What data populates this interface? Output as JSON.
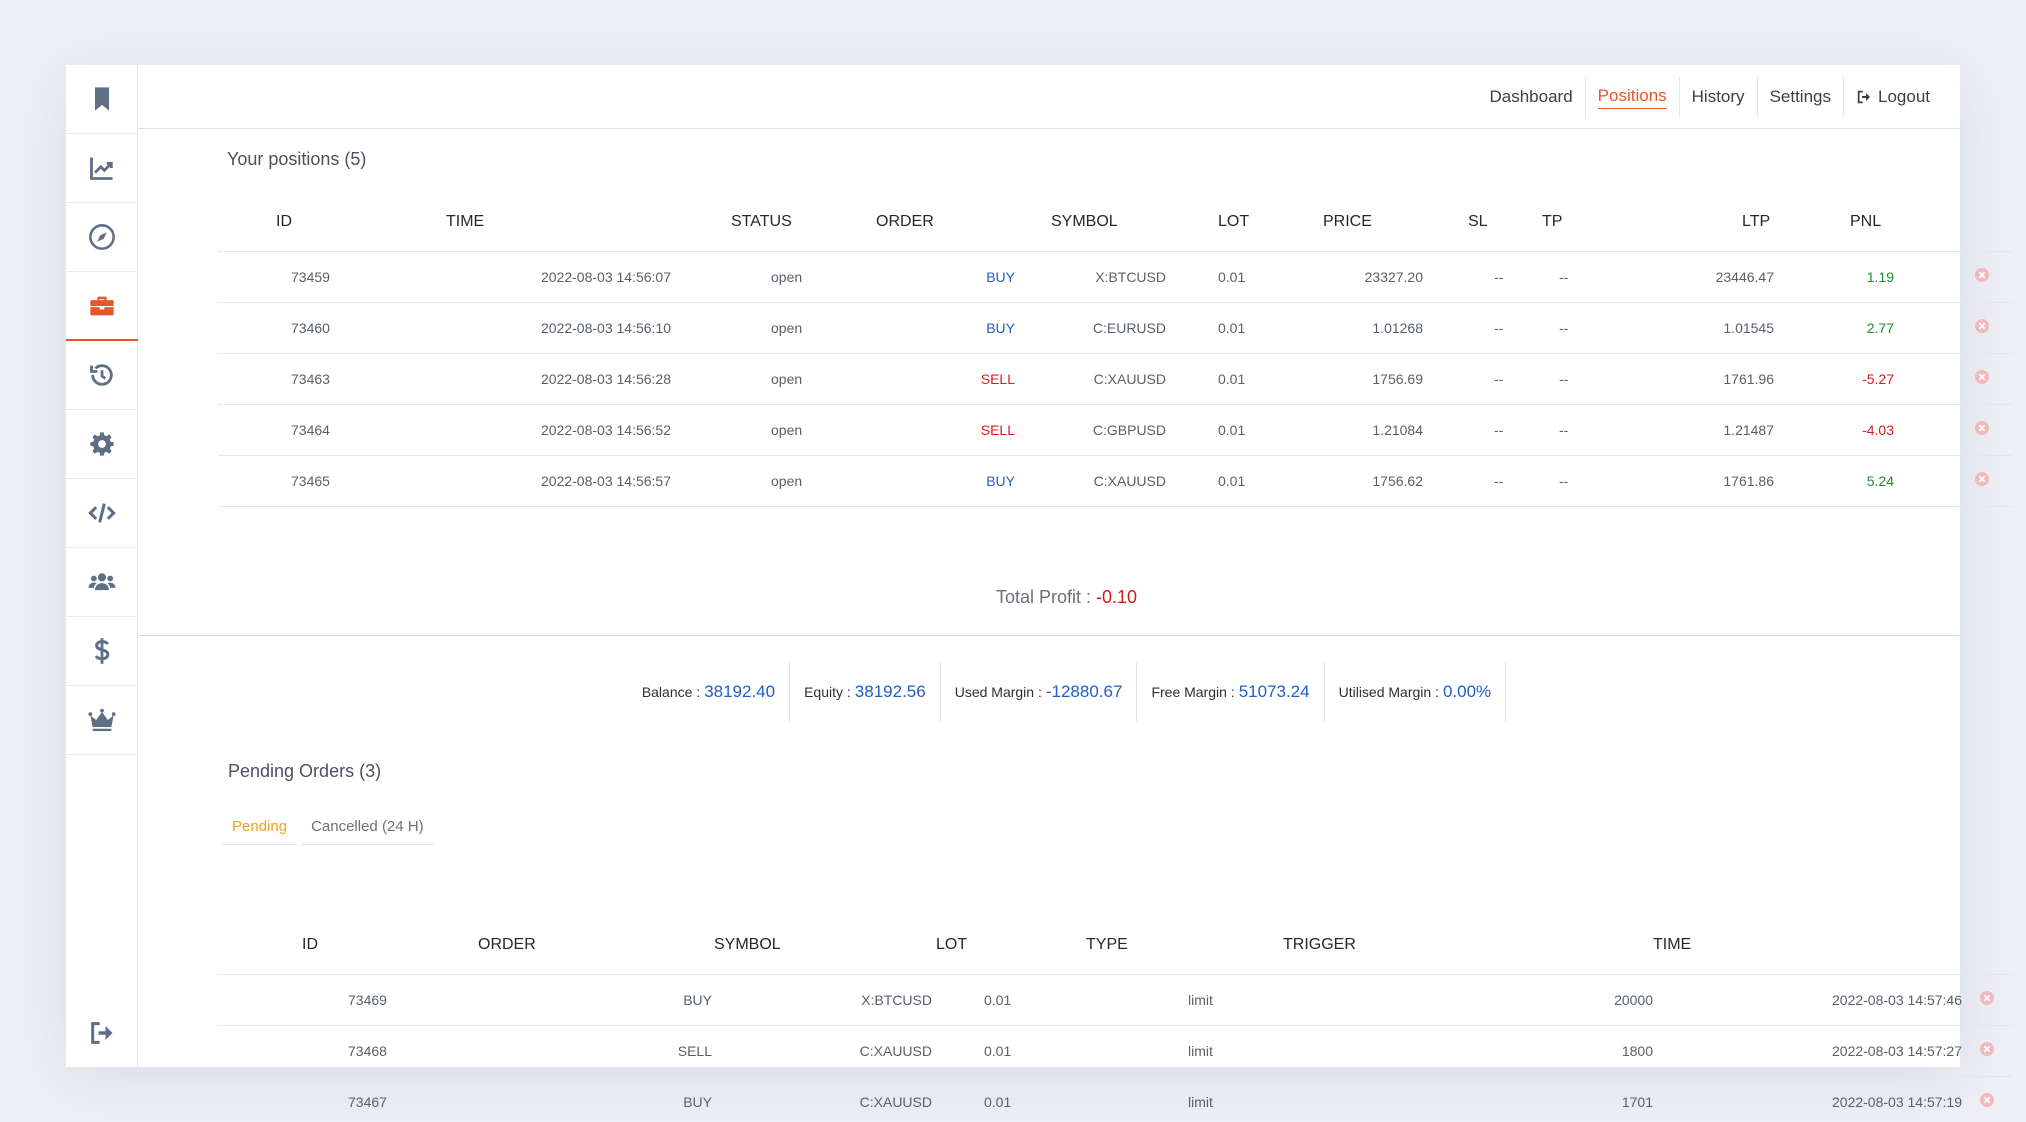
{
  "nav": {
    "items": [
      {
        "label": "Dashboard"
      },
      {
        "label": "Positions"
      },
      {
        "label": "History"
      },
      {
        "label": "Settings"
      }
    ],
    "logout": "Logout"
  },
  "colors": {
    "accent": "#e8572a",
    "buy": "#1f5fc4",
    "sell": "#e01b1b",
    "profit": "#1f8a2a",
    "loss": "#d91a1a",
    "pending_tab": "#f0a020"
  },
  "positions": {
    "title": "Your positions (5)",
    "headers": [
      "ID",
      "TIME",
      "STATUS",
      "ORDER",
      "SYMBOL",
      "LOT",
      "PRICE",
      "SL",
      "TP",
      "LTP",
      "PNL"
    ],
    "rows": [
      {
        "id": "73459",
        "time": "2022-08-03 14:56:07",
        "status": "open",
        "order": "BUY",
        "symbol": "X:BTCUSD",
        "lot": "0.01",
        "price": "23327.20",
        "sl": "--",
        "tp": "--",
        "ltp": "23446.47",
        "pnl": "1.19"
      },
      {
        "id": "73460",
        "time": "2022-08-03 14:56:10",
        "status": "open",
        "order": "BUY",
        "symbol": "C:EURUSD",
        "lot": "0.01",
        "price": "1.01268",
        "sl": "--",
        "tp": "--",
        "ltp": "1.01545",
        "pnl": "2.77"
      },
      {
        "id": "73463",
        "time": "2022-08-03 14:56:28",
        "status": "open",
        "order": "SELL",
        "symbol": "C:XAUUSD",
        "lot": "0.01",
        "price": "1756.69",
        "sl": "--",
        "tp": "--",
        "ltp": "1761.96",
        "pnl": "-5.27"
      },
      {
        "id": "73464",
        "time": "2022-08-03 14:56:52",
        "status": "open",
        "order": "SELL",
        "symbol": "C:GBPUSD",
        "lot": "0.01",
        "price": "1.21084",
        "sl": "--",
        "tp": "--",
        "ltp": "1.21487",
        "pnl": "-4.03"
      },
      {
        "id": "73465",
        "time": "2022-08-03 14:56:57",
        "status": "open",
        "order": "BUY",
        "symbol": "C:XAUUSD",
        "lot": "0.01",
        "price": "1756.62",
        "sl": "--",
        "tp": "--",
        "ltp": "1761.86",
        "pnl": "5.24"
      }
    ],
    "total_label": "Total Profit : ",
    "total_value": "-0.10"
  },
  "stats": [
    {
      "label": "Balance : ",
      "value": "38192.40"
    },
    {
      "label": "Equity : ",
      "value": "38192.56"
    },
    {
      "label": "Used Margin : ",
      "value": "-12880.67"
    },
    {
      "label": "Free Margin : ",
      "value": "51073.24"
    },
    {
      "label": "Utilised Margin : ",
      "value": "0.00%"
    }
  ],
  "pending": {
    "title": "Pending Orders (3)",
    "tabs": [
      "Pending",
      "Cancelled (24 H)"
    ],
    "headers": [
      "ID",
      "ORDER",
      "SYMBOL",
      "LOT",
      "TYPE",
      "TRIGGER",
      "TIME"
    ],
    "rows": [
      {
        "id": "73469",
        "order": "BUY",
        "symbol": "X:BTCUSD",
        "lot": "0.01",
        "type": "limit",
        "trigger": "20000",
        "time": "2022-08-03 14:57:46"
      },
      {
        "id": "73468",
        "order": "SELL",
        "symbol": "C:XAUUSD",
        "lot": "0.01",
        "type": "limit",
        "trigger": "1800",
        "time": "2022-08-03 14:57:27"
      },
      {
        "id": "73467",
        "order": "BUY",
        "symbol": "C:XAUUSD",
        "lot": "0.01",
        "type": "limit",
        "trigger": "1701",
        "time": "2022-08-03 14:57:19"
      }
    ]
  },
  "sidebar_icons": [
    "bookmark-icon",
    "chart-line-icon",
    "compass-icon",
    "briefcase-icon",
    "history-icon",
    "gear-icon",
    "code-icon",
    "users-icon",
    "dollar-icon",
    "crown-icon",
    "sign-out-icon"
  ]
}
